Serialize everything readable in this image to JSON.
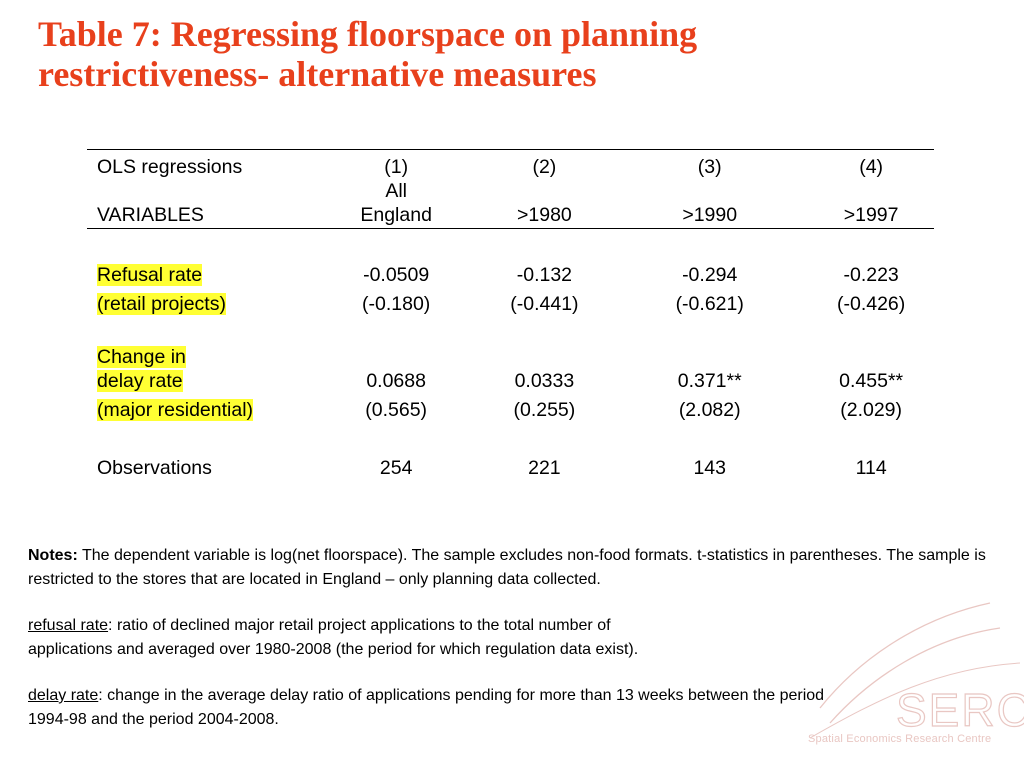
{
  "title": {
    "line1": "Table 7: Regressing floorspace on planning",
    "line2": "restrictiveness- alternative measures"
  },
  "table": {
    "header": {
      "row1": [
        "OLS regressions",
        "(1)",
        "(2)",
        "(3)",
        "(4)"
      ],
      "row2_col1": "All",
      "row3": [
        "VARIABLES",
        "England",
        ">1980",
        ">1990",
        ">1997"
      ]
    },
    "refusal": {
      "label1": "Refusal rate",
      "label2": "(retail projects)",
      "coef": [
        "-0.0509",
        "-0.132",
        "-0.294",
        "-0.223"
      ],
      "tstat": [
        "(-0.180)",
        "(-0.441)",
        "(-0.621)",
        "(-0.426)"
      ]
    },
    "delay": {
      "label1": "Change in",
      "label2": "delay rate",
      "label3": "(major residential)",
      "coef": [
        "0.0688",
        "0.0333",
        "0.371**",
        "0.455**"
      ],
      "tstat": [
        "(0.565)",
        "(0.255)",
        "(2.082)",
        "(2.029)"
      ]
    },
    "observations": {
      "label": "Observations",
      "values": [
        "254",
        "221",
        "143",
        "114"
      ]
    }
  },
  "notes": {
    "notes_label": "Notes:",
    "notes_text": " The dependent variable is log(net floorspace). The sample excludes non-food formats. t-statistics in parentheses. The sample is restricted to the stores that are located in England – only planning data collected.",
    "refusal_term": "refusal rate",
    "refusal_def": ": ratio of declined major retail project applications to the total number of",
    "refusal_def2": "applications and averaged over 1980-2008 (the period for which regulation data exist).",
    "delay_term": "delay rate",
    "delay_def": ": change in the average delay ratio of applications pending for more than 13 weeks between the period",
    "delay_def2": "1994-98 and the period 2004-2008."
  },
  "logo": {
    "text": "SERC",
    "caption": "Spatial Economics Research Centre"
  },
  "colors": {
    "title": "#e8401c",
    "highlight": "#ffff33",
    "logo": "#e9c7c3"
  }
}
